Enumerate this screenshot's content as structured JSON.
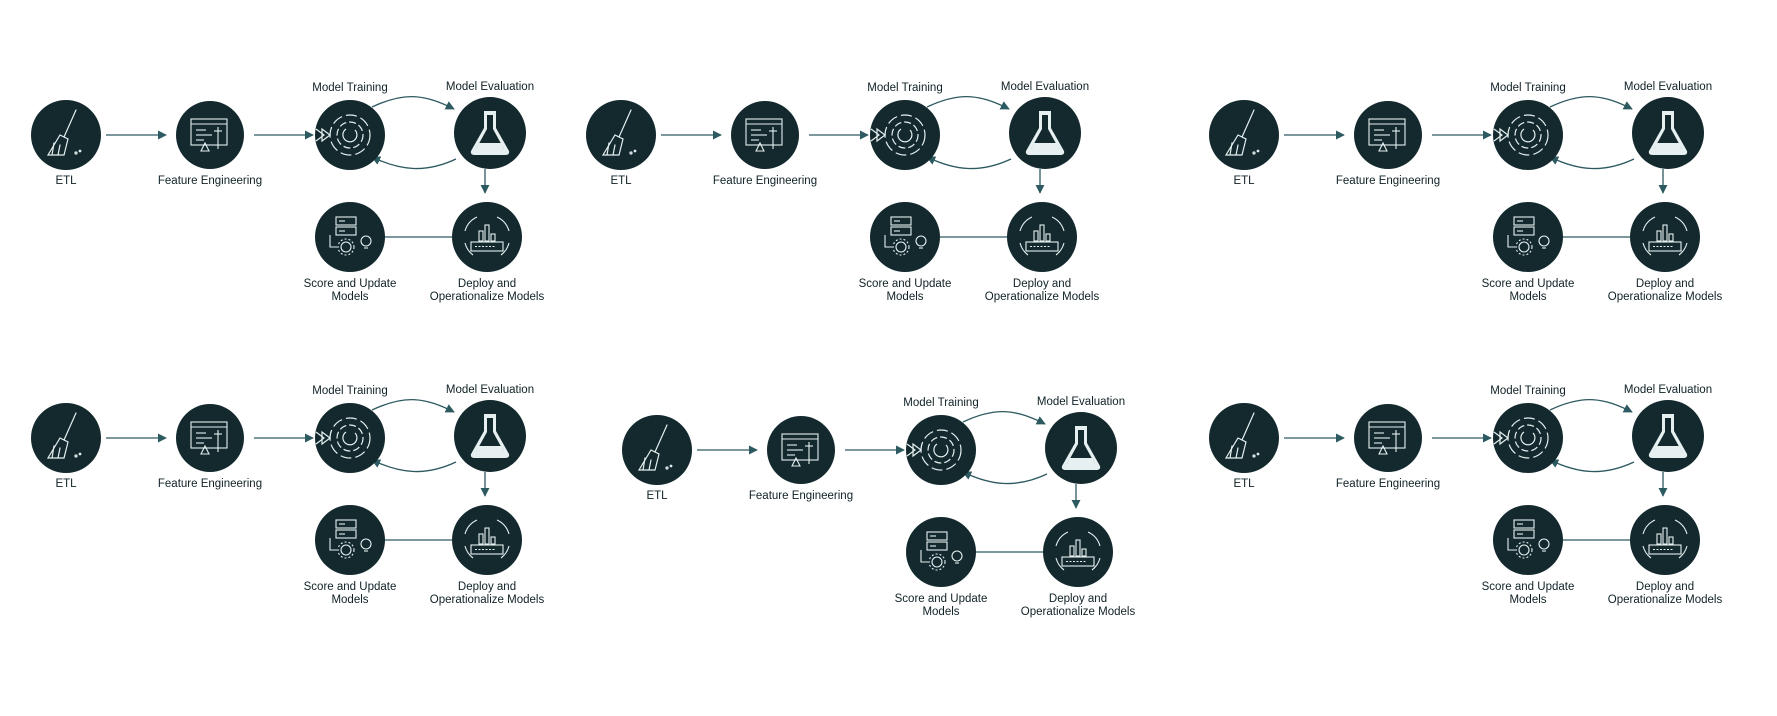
{
  "diagram": {
    "node_color": "#13292d",
    "icon_color": "#e6f0f0",
    "arrow_color": "#2d5a60",
    "labels": {
      "etl": "ETL",
      "feature_engineering": "Feature Engineering",
      "model_training": "Model Training",
      "model_evaluation": "Model Evaluation",
      "score_line1": "Score  and Update",
      "score_line2": "Models",
      "deploy_line1": "Deploy and",
      "deploy_line2": "Operationalize Models"
    },
    "icons": {
      "etl": "broom-icon",
      "feature_engineering": "code-tools-icon",
      "model_training": "training-cycle-icon",
      "model_evaluation": "flask-icon",
      "deploy": "deploy-chart-icon",
      "score": "server-lightbulb-icon"
    },
    "panel_count": 6
  }
}
